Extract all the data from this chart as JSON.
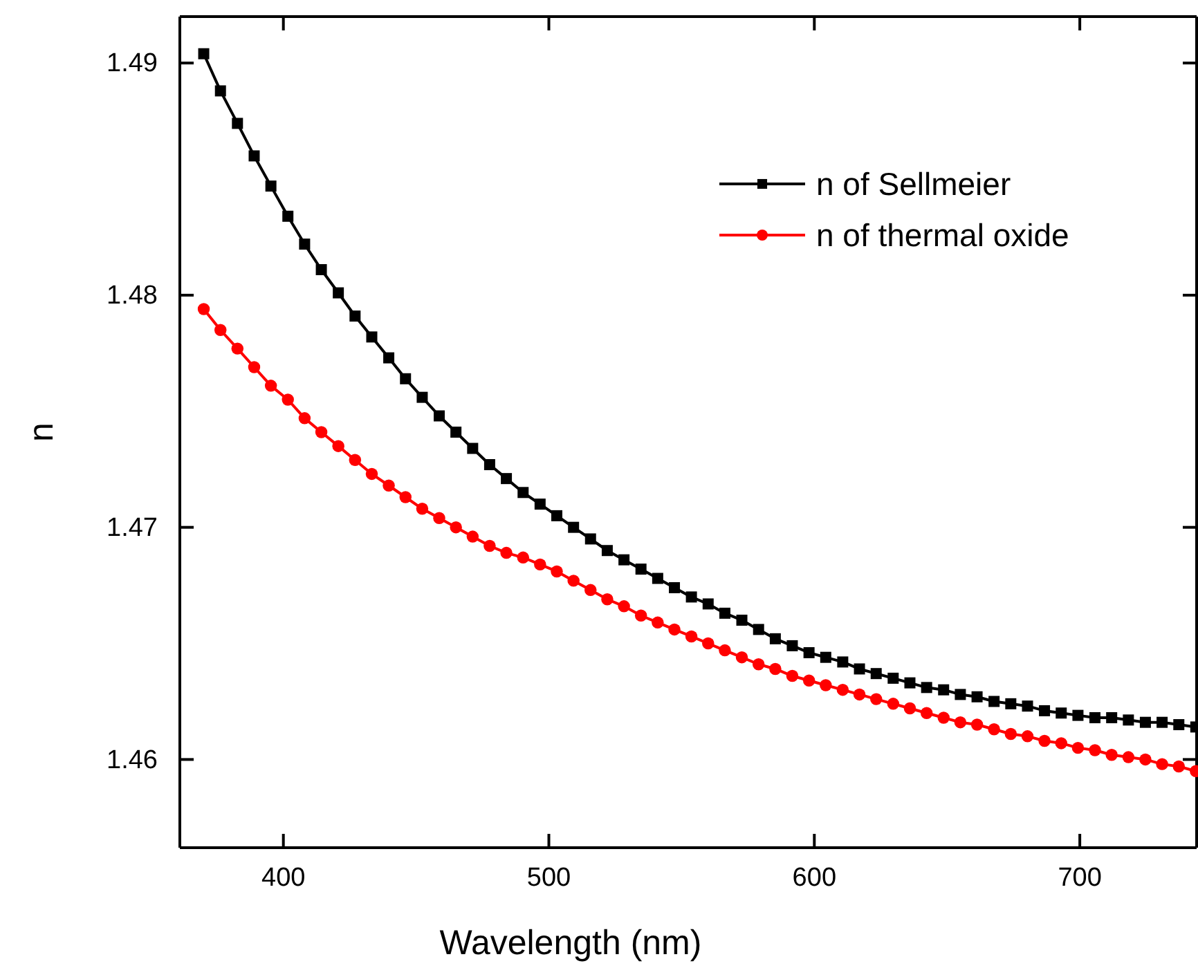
{
  "chart_data": {
    "type": "line",
    "xlabel": "Wavelength (nm)",
    "ylabel": "n",
    "x": [
      370,
      376.3,
      382.7,
      389,
      395.3,
      401.7,
      408,
      414.3,
      420.7,
      427,
      433.3,
      439.7,
      446,
      452.3,
      458.7,
      465,
      471.3,
      477.7,
      484,
      490.3,
      496.7,
      503,
      509.3,
      515.7,
      522,
      528.3,
      534.7,
      541,
      547.3,
      553.7,
      560,
      566.3,
      572.7,
      579,
      585.3,
      591.7,
      598,
      604.3,
      610.7,
      617,
      623.3,
      629.7,
      636,
      642.3,
      648.7,
      655,
      661.3,
      667.7,
      674,
      680.3,
      686.7,
      693,
      699.3,
      705.7,
      712,
      718.3,
      724.7,
      731,
      737.3,
      743.7
    ],
    "series": [
      {
        "name": "n of Sellmeier",
        "color": "#000000",
        "marker": "square",
        "values": [
          1.4904,
          1.4888,
          1.4874,
          1.486,
          1.4847,
          1.4834,
          1.4822,
          1.4811,
          1.4801,
          1.4791,
          1.4782,
          1.4773,
          1.4764,
          1.4756,
          1.4748,
          1.4741,
          1.4734,
          1.4727,
          1.4721,
          1.4715,
          1.471,
          1.4705,
          1.47,
          1.4695,
          1.469,
          1.4686,
          1.4682,
          1.4678,
          1.4674,
          1.467,
          1.4667,
          1.4663,
          1.466,
          1.4656,
          1.4652,
          1.4649,
          1.4646,
          1.4644,
          1.4642,
          1.4639,
          1.4637,
          1.4635,
          1.4633,
          1.4631,
          1.463,
          1.4628,
          1.4627,
          1.4625,
          1.4624,
          1.4623,
          1.4621,
          1.462,
          1.4619,
          1.4618,
          1.4618,
          1.4617,
          1.4616,
          1.4616,
          1.4615,
          1.4614
        ]
      },
      {
        "name": "n of thermal oxide",
        "color": "#ff0000",
        "marker": "circle",
        "values": [
          1.4794,
          1.4785,
          1.4777,
          1.4769,
          1.4761,
          1.4755,
          1.4747,
          1.4741,
          1.4735,
          1.4729,
          1.4723,
          1.4718,
          1.4713,
          1.4708,
          1.4704,
          1.47,
          1.4696,
          1.4692,
          1.4689,
          1.4687,
          1.4684,
          1.4681,
          1.4677,
          1.4673,
          1.4669,
          1.4666,
          1.4662,
          1.4659,
          1.4656,
          1.4653,
          1.465,
          1.4647,
          1.4644,
          1.4641,
          1.4639,
          1.4636,
          1.4634,
          1.4632,
          1.463,
          1.4628,
          1.4626,
          1.4624,
          1.4622,
          1.462,
          1.4618,
          1.4616,
          1.4615,
          1.4613,
          1.4611,
          1.461,
          1.4608,
          1.4607,
          1.4605,
          1.4604,
          1.4602,
          1.4601,
          1.46,
          1.4598,
          1.4597,
          1.4595
        ]
      }
    ],
    "xlim": [
      361,
      744
    ],
    "xticks": [
      400,
      500,
      600,
      700
    ],
    "ylim": [
      1.4562,
      1.492
    ],
    "yticks": [
      1.46,
      1.47,
      1.48,
      1.49
    ],
    "grid": false,
    "legend": "top right",
    "line_style": "solid"
  }
}
